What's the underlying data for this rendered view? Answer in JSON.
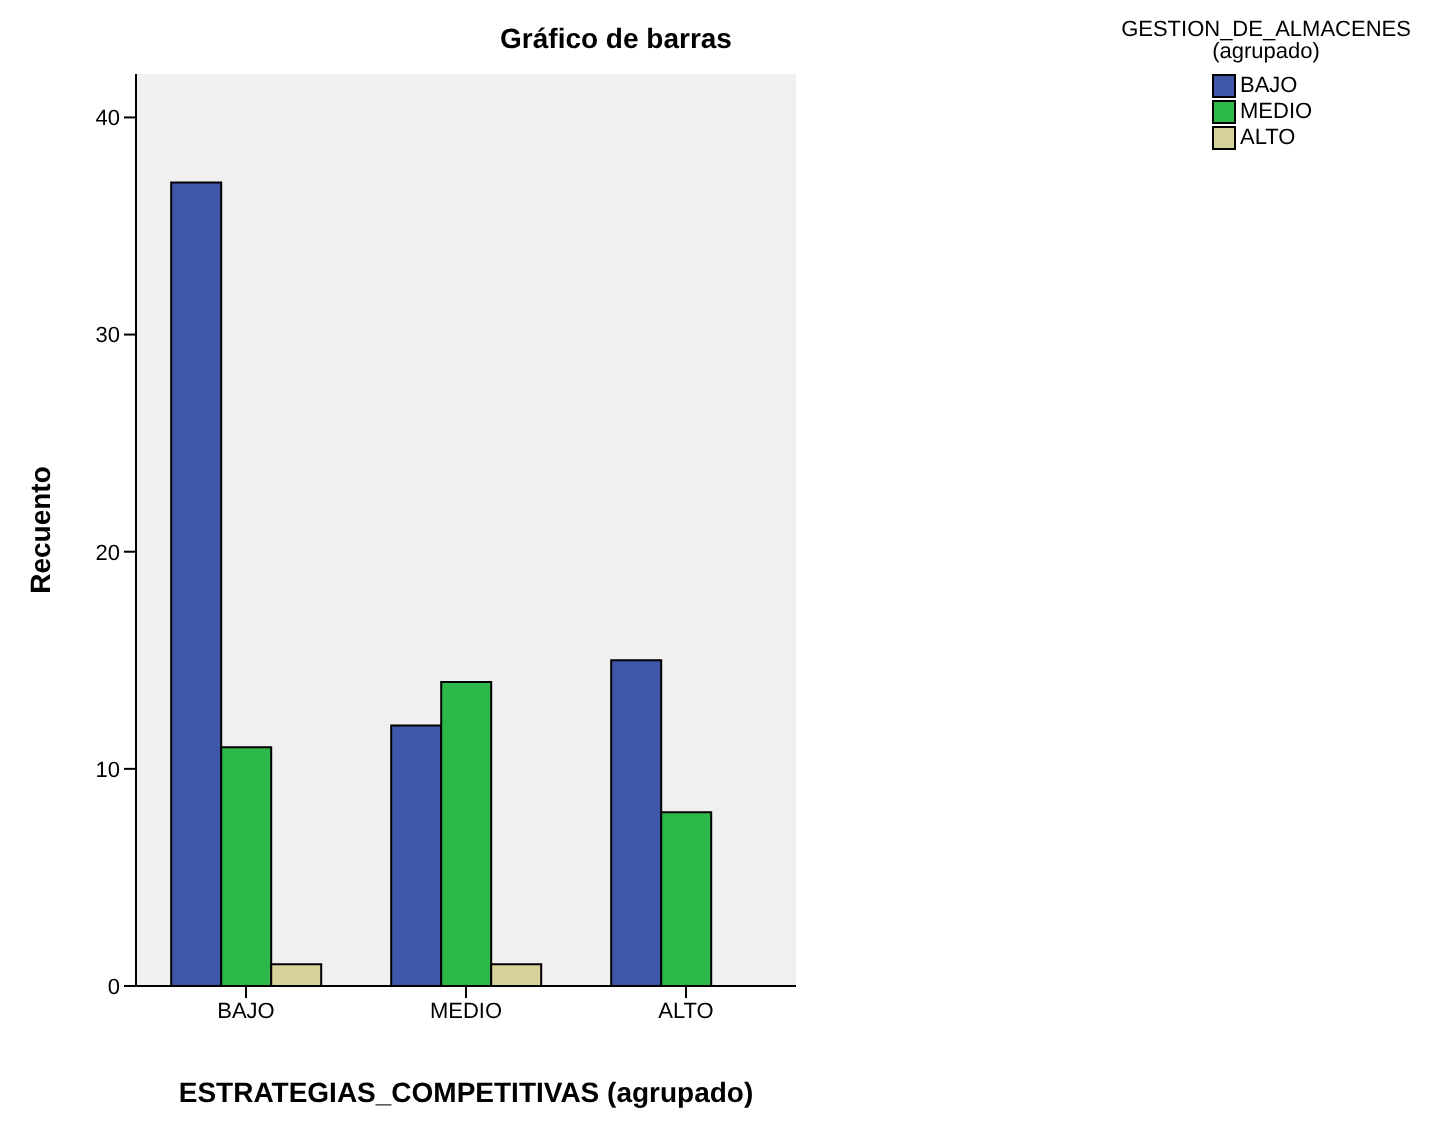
{
  "chart_data": {
    "type": "bar",
    "title": "Gráfico de barras",
    "xlabel": "ESTRATEGIAS_COMPETITIVAS (agrupado)",
    "ylabel": "Recuento",
    "legend_title": "GESTION_DE_ALMACENES (agrupado)",
    "categories": [
      "BAJO",
      "MEDIO",
      "ALTO"
    ],
    "series": [
      {
        "name": "BAJO",
        "color": "#3f57a8",
        "values": [
          37,
          12,
          15
        ]
      },
      {
        "name": "MEDIO",
        "color": "#2db84a",
        "values": [
          11,
          14,
          8
        ]
      },
      {
        "name": "ALTO",
        "color": "#d6d29a",
        "values": [
          1,
          1,
          null
        ]
      }
    ],
    "ylim": [
      0,
      42
    ],
    "yticks": [
      0,
      10,
      20,
      30,
      40
    ],
    "legend": "top right"
  }
}
